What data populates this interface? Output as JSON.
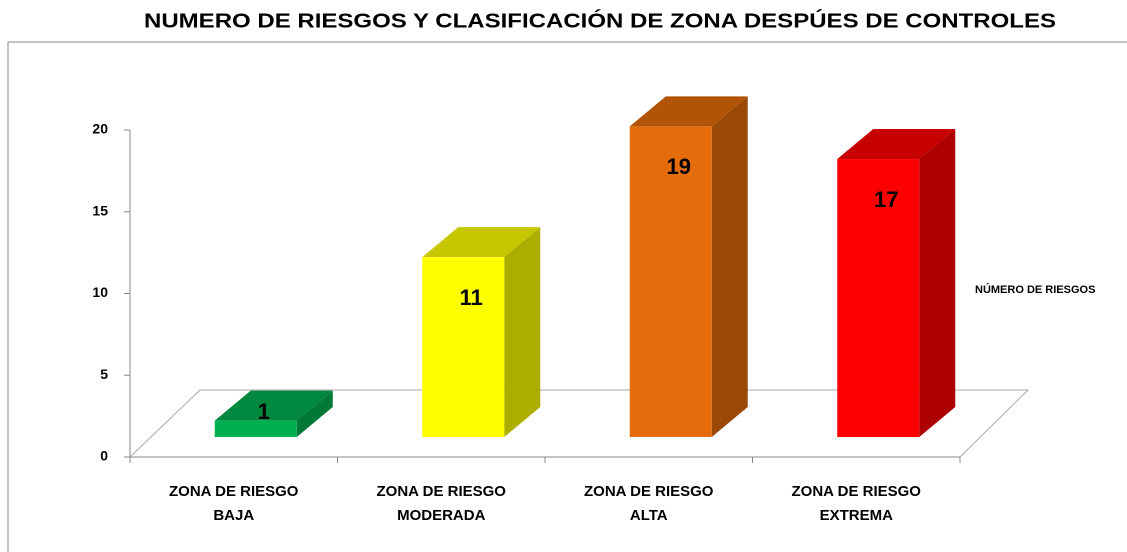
{
  "chart_data": {
    "type": "bar3d",
    "title": "NUMERO DE RIESGOS Y CLASIFICACIÓN DE ZONA  DESPÚES DE CONTROLES",
    "categories": [
      "ZONA DE RIESGO BAJA",
      "ZONA DE RIESGO MODERADA",
      "ZONA DE RIESGO ALTA",
      "ZONA DE RIESGO EXTREMA"
    ],
    "series": [
      {
        "name": "NÚMERO DE RIESGOS",
        "colors": [
          "#00b050",
          "#ffff00",
          "#e46c0a",
          "#ff0000"
        ],
        "values": [
          1,
          11,
          19,
          17
        ]
      }
    ],
    "ylim": [
      0,
      20
    ],
    "yticks": [
      0,
      5,
      10,
      15,
      20
    ],
    "grid": false
  }
}
